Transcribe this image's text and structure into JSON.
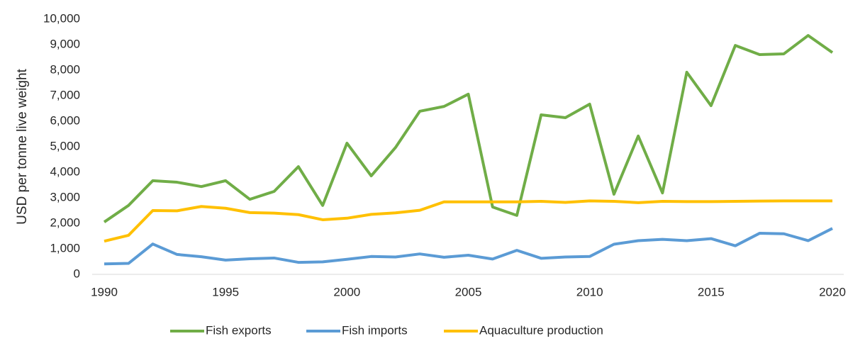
{
  "chart_data": {
    "type": "line",
    "y_label": "USD per tonne live weight",
    "x": [
      1990,
      1991,
      1992,
      1993,
      1994,
      1995,
      1996,
      1997,
      1998,
      1999,
      2000,
      2001,
      2002,
      2003,
      2004,
      2005,
      2006,
      2007,
      2008,
      2009,
      2010,
      2011,
      2012,
      2013,
      2014,
      2015,
      2016,
      2017,
      2018,
      2019,
      2020
    ],
    "series": [
      {
        "name": "Fish exports",
        "color": "#70ad47",
        "values": [
          2050,
          2700,
          3670,
          3610,
          3440,
          3670,
          2940,
          3250,
          4220,
          2700,
          5140,
          3860,
          4970,
          6390,
          6580,
          7060,
          2640,
          2310,
          6250,
          6140,
          6670,
          3140,
          5420,
          3190,
          7920,
          6610,
          8970,
          8610,
          8640,
          9360,
          8690
        ]
      },
      {
        "name": "Fish imports",
        "color": "#5b9bd5",
        "values": [
          410,
          430,
          1190,
          780,
          690,
          560,
          610,
          640,
          470,
          490,
          590,
          700,
          680,
          800,
          670,
          750,
          600,
          940,
          630,
          680,
          700,
          1180,
          1320,
          1370,
          1320,
          1400,
          1120,
          1610,
          1590,
          1320,
          1800
        ]
      },
      {
        "name": "Aquaculture production",
        "color": "#ffc000",
        "values": [
          1300,
          1530,
          2500,
          2490,
          2660,
          2590,
          2420,
          2400,
          2340,
          2140,
          2200,
          2350,
          2410,
          2510,
          2840,
          2840,
          2840,
          2840,
          2860,
          2820,
          2880,
          2860,
          2810,
          2860,
          2850,
          2850,
          2860,
          2870,
          2880,
          2880,
          2880
        ]
      }
    ],
    "xlim": [
      1990,
      2020
    ],
    "xticks": [
      1990,
      1995,
      2000,
      2005,
      2010,
      2015,
      2020
    ],
    "ylim": [
      0,
      10000
    ],
    "yticks": [
      0,
      {
        "value": 1000,
        "label": "1,000"
      },
      {
        "value": 2000,
        "label": "2,000"
      },
      {
        "value": 3000,
        "label": "3,000"
      },
      {
        "value": 4000,
        "label": "4,000"
      },
      {
        "value": 5000,
        "label": "5,000"
      },
      {
        "value": 6000,
        "label": "6,000"
      },
      {
        "value": 7000,
        "label": "7,000"
      },
      {
        "value": 8000,
        "label": "8,000"
      },
      {
        "value": 9000,
        "label": "9,000"
      },
      {
        "value": 10000,
        "label": "10,000"
      }
    ],
    "legend": "bottom"
  }
}
